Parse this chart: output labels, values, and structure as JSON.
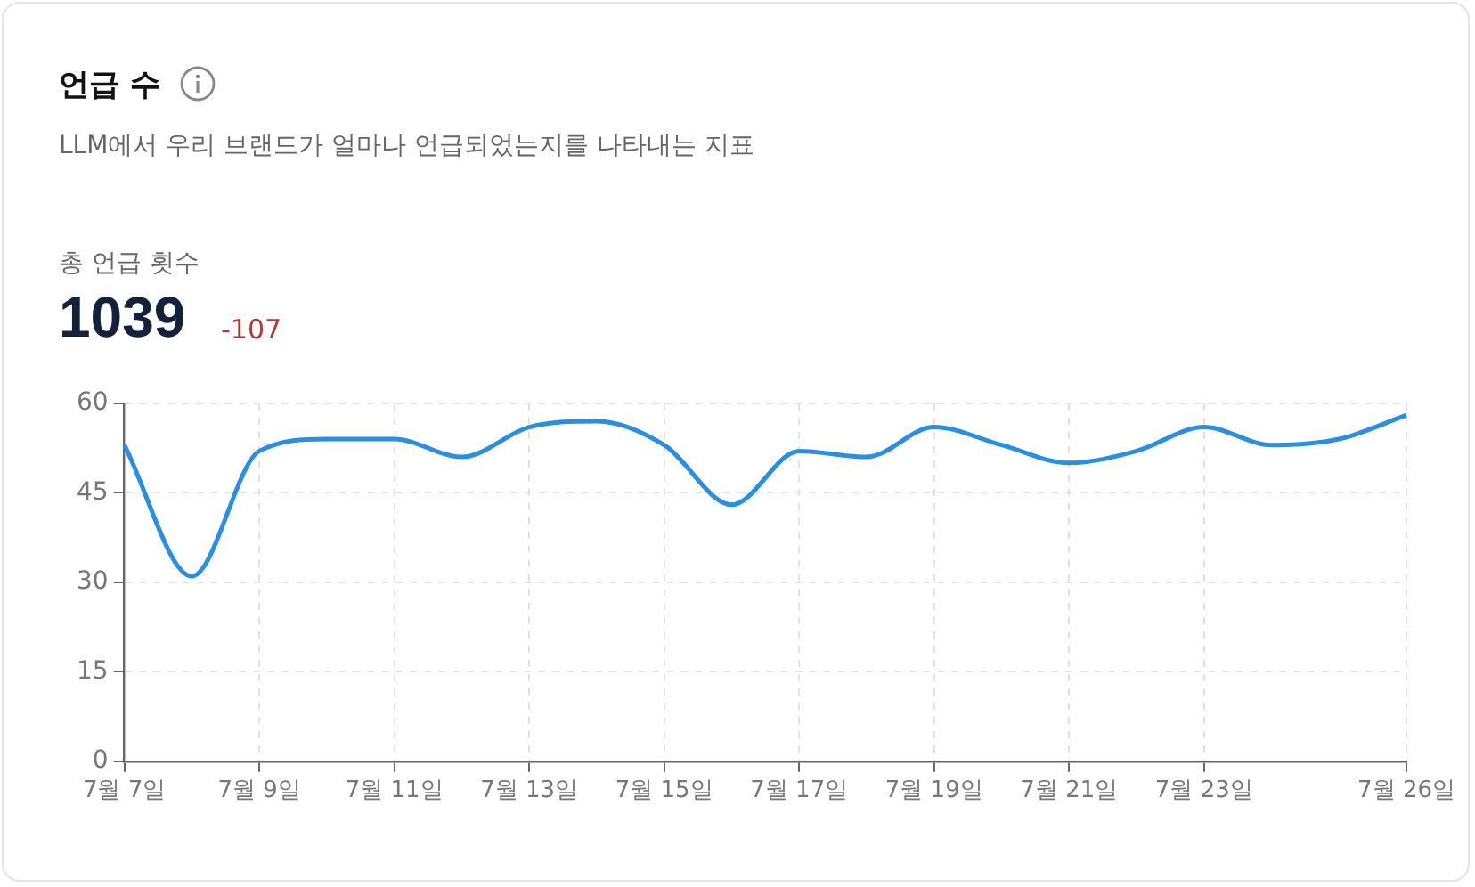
{
  "chart_data": {
    "type": "line",
    "title": "언급 수",
    "subtitle": "LLM에서 우리 브랜드가 얼마나 언급되었는지를 나타내는 지표",
    "annotations": [
      "총 언급 횟수",
      "1039",
      "-107"
    ],
    "categories": [
      "7월 7일",
      null,
      "7월 9일",
      null,
      "7월 11일",
      null,
      "7월 13일",
      null,
      "7월 15일",
      null,
      "7월 17일",
      null,
      "7월 19일",
      null,
      "7월 21일",
      null,
      "7월 23일",
      null,
      null,
      "7월 26일"
    ],
    "series": [
      {
        "color": "#2a8fe0",
        "values": [
          53,
          31,
          52,
          54,
          54,
          51,
          56,
          57,
          53,
          43,
          52,
          51,
          56,
          53,
          50,
          52,
          56,
          53,
          54,
          58
        ]
      }
    ],
    "ylim": [
      0,
      60
    ],
    "yticks": [
      0,
      15,
      30,
      45,
      60
    ],
    "grid": true,
    "legend": false,
    "marker": "none",
    "line_style": "solid"
  }
}
